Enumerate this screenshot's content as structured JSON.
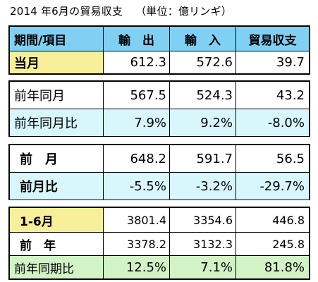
{
  "title": "2014 年6月の貿易収支",
  "unit": "（単位：億リンギ）",
  "header": {
    "label": "期間/項目",
    "exports": "輸　出",
    "imports": "輸　入",
    "balance": "貿易収支"
  },
  "current": {
    "label": "当月",
    "exports": "612.3",
    "imports": "572.6",
    "balance": "39.7"
  },
  "yoy": [
    {
      "label": "前年同月",
      "exports": "567.5",
      "imports": "524.3",
      "balance": "43.2"
    },
    {
      "label": "前年同月比",
      "exports": "7.9%",
      "imports": "9.2%",
      "balance": "-8.0%"
    }
  ],
  "mom": [
    {
      "label": "前　月",
      "exports": "648.2",
      "imports": "591.7",
      "balance": "56.5"
    },
    {
      "label": "前月比",
      "exports": "-5.5%",
      "imports": "-3.2%",
      "balance": "-29.7%"
    }
  ],
  "ytd": [
    {
      "label": "1-6月",
      "exports": "3801.4",
      "imports": "3354.6",
      "balance": "446.8"
    },
    {
      "label": "前　年",
      "exports": "3378.2",
      "imports": "3132.3",
      "balance": "245.8"
    },
    {
      "label": "前年同期比",
      "exports": "12.5%",
      "imports": "7.1%",
      "balance": "81.8%"
    }
  ],
  "colors": {
    "header": "#7fd0f2",
    "yellow": "#f7ef9a",
    "cyan": "#d8f7fd",
    "green": "#d2f3c5"
  }
}
